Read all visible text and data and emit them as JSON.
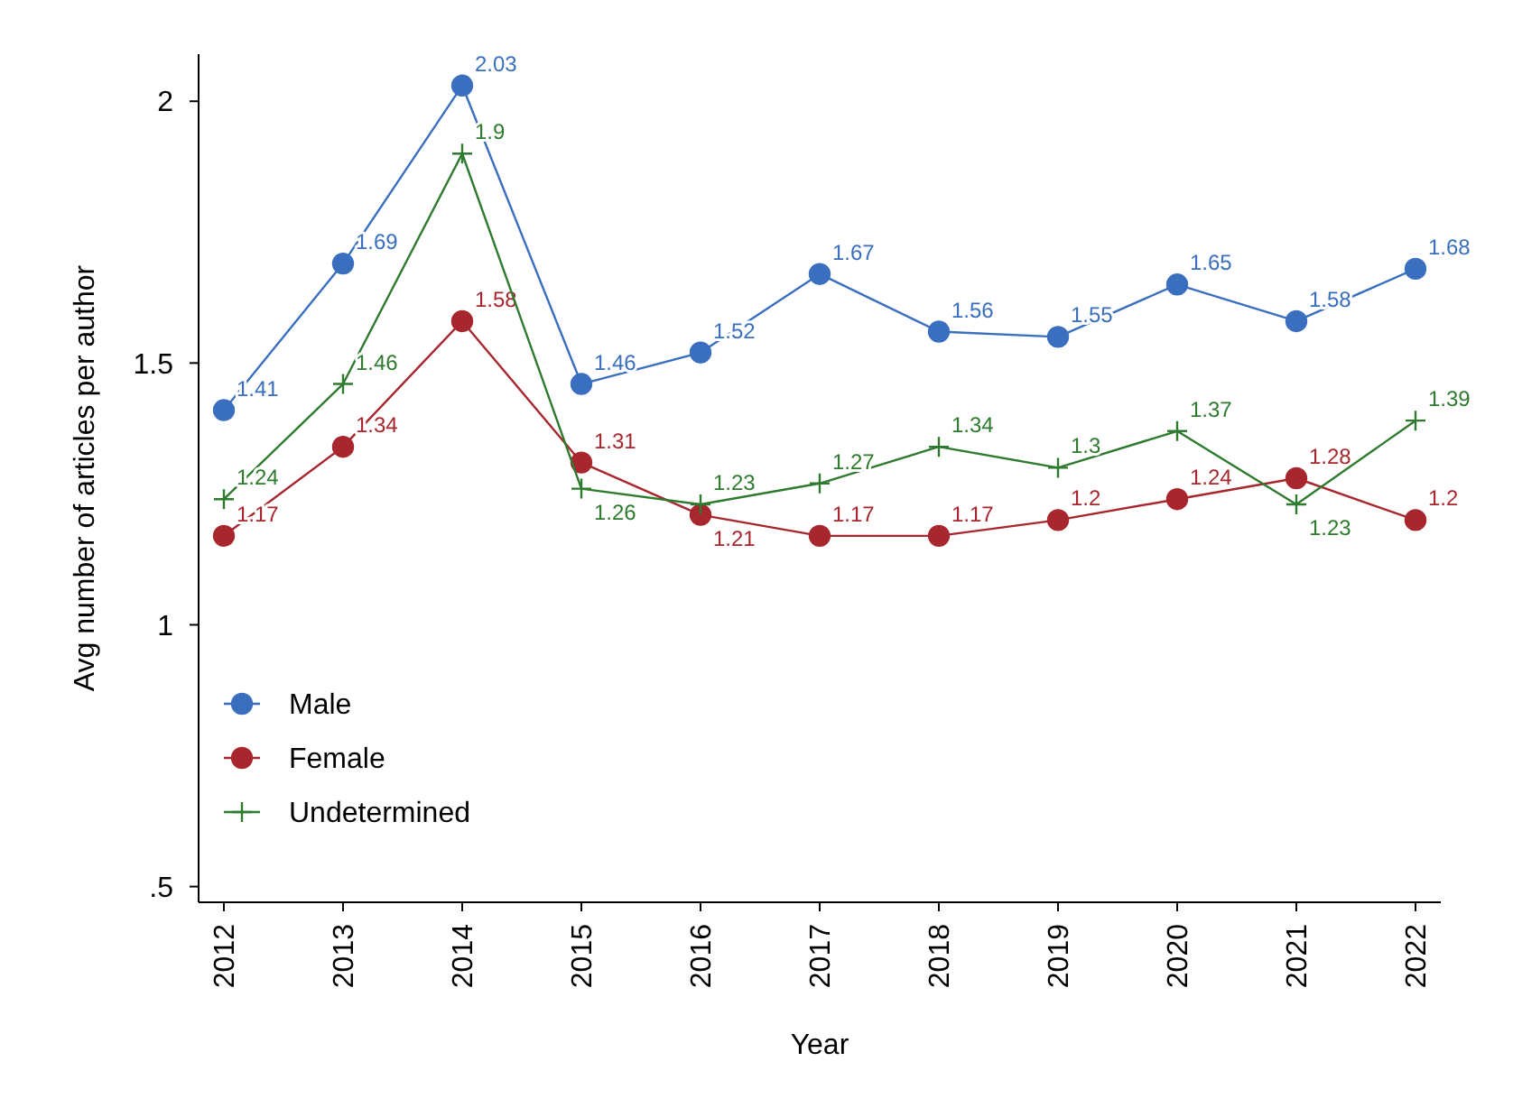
{
  "chart_data": {
    "type": "line",
    "xlabel": "Year",
    "ylabel": "Avg number of articles per author",
    "categories": [
      "2012",
      "2013",
      "2014",
      "2015",
      "2016",
      "2017",
      "2018",
      "2019",
      "2020",
      "2021",
      "2022"
    ],
    "series": [
      {
        "name": "Male",
        "color": "#3a6fbf",
        "marker": "circle",
        "values": [
          1.41,
          1.69,
          2.03,
          1.46,
          1.52,
          1.67,
          1.56,
          1.55,
          1.65,
          1.58,
          1.68
        ]
      },
      {
        "name": "Female",
        "color": "#a8262d",
        "marker": "circle",
        "values": [
          1.17,
          1.34,
          1.58,
          1.31,
          1.21,
          1.17,
          1.17,
          1.2,
          1.24,
          1.28,
          1.2
        ]
      },
      {
        "name": "Undetermined",
        "color": "#2e7a2e",
        "marker": "cross",
        "values": [
          1.24,
          1.46,
          1.9,
          1.26,
          1.23,
          1.27,
          1.34,
          1.3,
          1.37,
          1.23,
          1.39
        ]
      }
    ],
    "ylim": [
      0.47,
      2.09
    ],
    "yticks": [
      {
        "value": 0.5,
        "label": ".5"
      },
      1,
      1.5,
      2
    ],
    "grid": false,
    "legend": "bottom left",
    "data_labels": true
  }
}
